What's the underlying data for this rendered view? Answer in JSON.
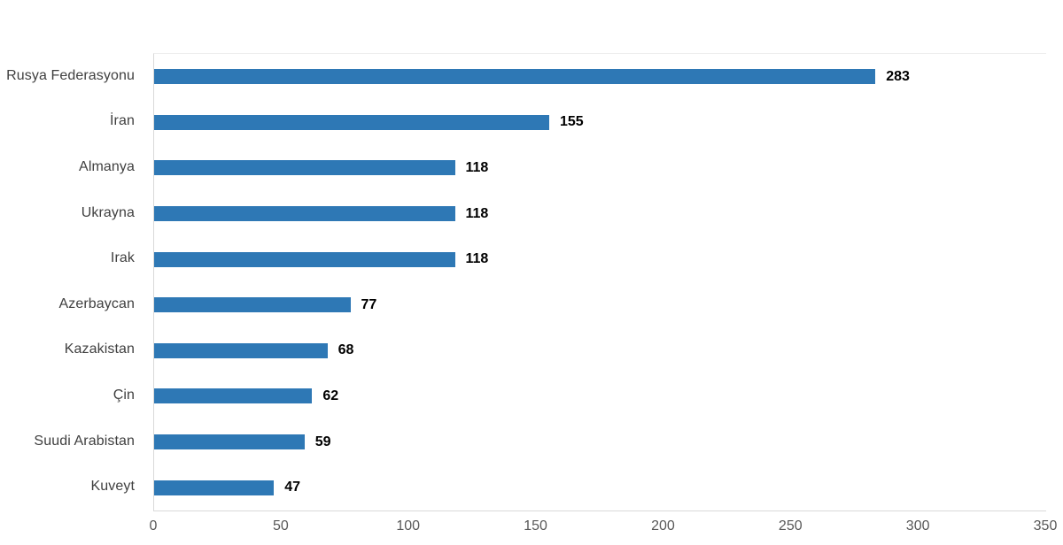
{
  "chart_data": {
    "type": "bar",
    "orientation": "horizontal",
    "title": "",
    "xlabel": "",
    "ylabel": "",
    "categories": [
      "Rusya Federasyonu",
      "İran",
      "Almanya",
      "Ukrayna",
      "Irak",
      "Azerbaycan",
      "Kazakistan",
      "Çin",
      "Suudi Arabistan",
      "Kuveyt"
    ],
    "values": [
      283,
      155,
      118,
      118,
      118,
      77,
      68,
      62,
      59,
      47
    ],
    "xlim": [
      0,
      350
    ],
    "x_ticks": [
      0,
      50,
      100,
      150,
      200,
      250,
      300,
      350
    ],
    "grid": "off",
    "legend": "none",
    "value_labels_shown": true
  },
  "colors": {
    "bar": "#2e78b5",
    "category_label": "#404040",
    "value_label": "#000000",
    "tick_label": "#595959",
    "axis_line": "#d9d9d9"
  }
}
